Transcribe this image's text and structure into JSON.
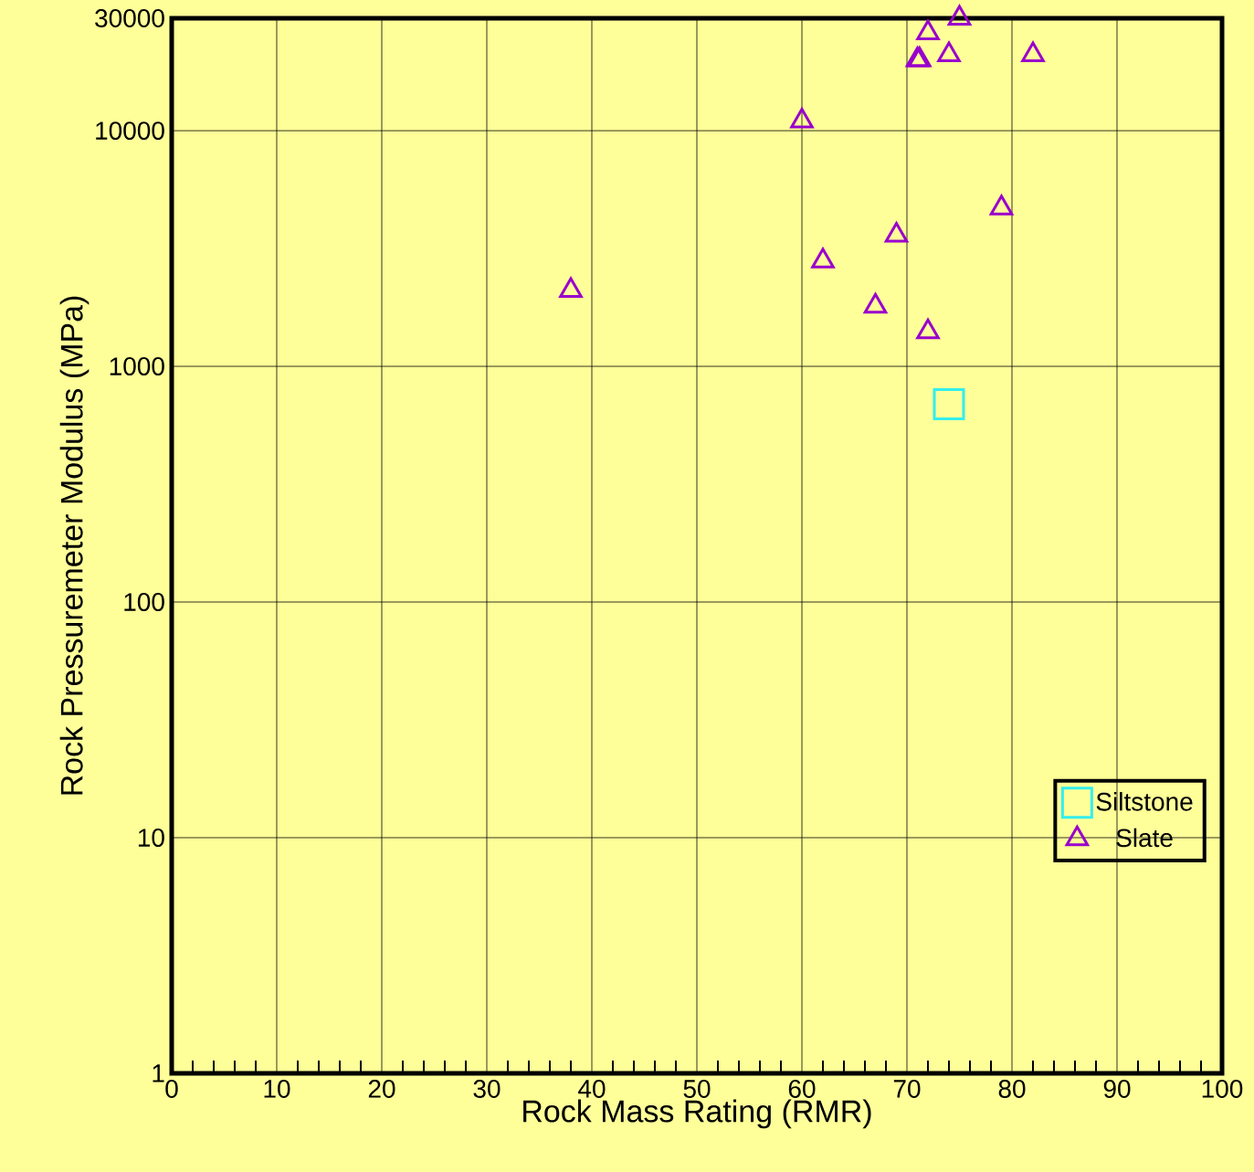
{
  "chart_data": {
    "type": "scatter",
    "xlabel": "Rock Mass Rating (RMR)",
    "ylabel": "Rock Pressuremeter Modulus (MPa)",
    "xlim": [
      0,
      100
    ],
    "xticks": [
      0,
      10,
      20,
      30,
      40,
      50,
      60,
      70,
      80,
      90,
      100
    ],
    "ylim": [
      1,
      30000
    ],
    "yticks": [
      1,
      10,
      100,
      1000,
      10000,
      30000
    ],
    "log": "y",
    "grid": true,
    "legend": "bottom right",
    "series": [
      {
        "name": "Siltstone",
        "color": "#33eeee",
        "marker": "square",
        "x": [
          74
        ],
        "values": [
          690
        ]
      },
      {
        "name": "Slate",
        "color": "#9900cc",
        "marker": "triangle",
        "x": [
          38,
          60,
          62,
          67,
          69,
          71,
          71.2,
          72,
          72,
          74,
          75,
          79,
          82
        ],
        "values": [
          2100,
          11000,
          2800,
          1800,
          3600,
          20000,
          20000,
          26000,
          1400,
          21000,
          30000,
          4700,
          21000
        ]
      }
    ]
  }
}
